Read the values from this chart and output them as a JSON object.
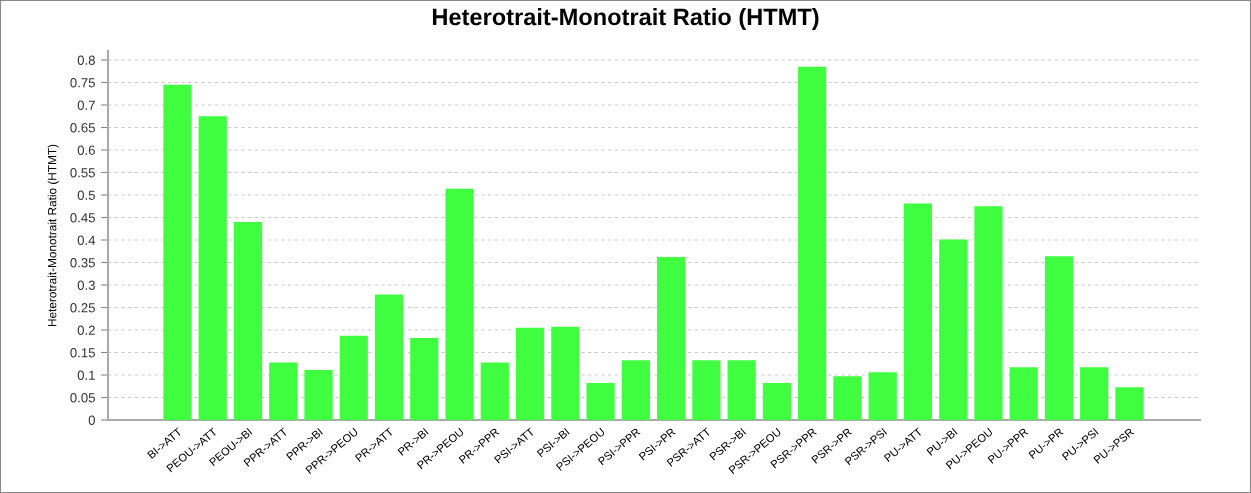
{
  "chart_data": {
    "type": "bar",
    "title": "Heterotrait-Monotrait Ratio (HTMT)",
    "ylabel": "Heterotrait-Monotrait Ratio (HTMT)",
    "categories": [
      "BI->ATT",
      "PEOU->ATT",
      "PEOU->BI",
      "PPR->ATT",
      "PPR->BI",
      "PPR->PEOU",
      "PR->ATT",
      "PR->BI",
      "PR->PEOU",
      "PR->PPR",
      "PSI->ATT",
      "PSI->BI",
      "PSI->PEOU",
      "PSI->PPR",
      "PSI->PR",
      "PSR->ATT",
      "PSR->BI",
      "PSR->PEOU",
      "PSR->PPR",
      "PSR->PR",
      "PSR->PSI",
      "PU->ATT",
      "PU->BI",
      "PU->PEOU",
      "PU->PPR",
      "PU->PR",
      "PU->PSI",
      "PU->PSR"
    ],
    "values": [
      0.745,
      0.675,
      0.44,
      0.128,
      0.111,
      0.187,
      0.279,
      0.182,
      0.514,
      0.128,
      0.205,
      0.207,
      0.082,
      0.133,
      0.362,
      0.133,
      0.133,
      0.082,
      0.785,
      0.097,
      0.106,
      0.481,
      0.401,
      0.475,
      0.117,
      0.364,
      0.117,
      0.073
    ],
    "color": "#40ff40",
    "ylim": [
      0,
      0.82
    ],
    "yticks": [
      0,
      0.05,
      0.1,
      0.15,
      0.2,
      0.25,
      0.3,
      0.35,
      0.4,
      0.45,
      0.5,
      0.55,
      0.6,
      0.65,
      0.7,
      0.75,
      0.8
    ],
    "grid": "y"
  }
}
